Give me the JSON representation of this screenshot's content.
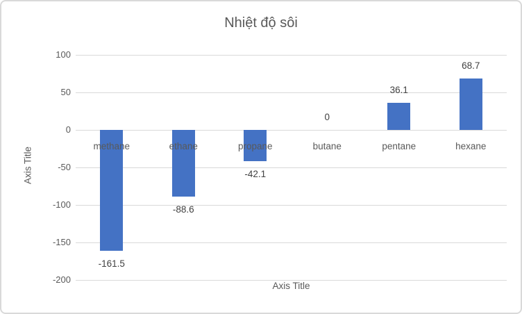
{
  "chart_data": {
    "type": "bar",
    "title": "Nhiệt độ sôi",
    "xlabel": "Axis Title",
    "ylabel": "Axis Title",
    "categories": [
      "methane",
      "ethane",
      "propane",
      "butane",
      "pentane",
      "hexane"
    ],
    "values": [
      -161.5,
      -88.6,
      -42.1,
      0,
      36.1,
      68.7
    ],
    "data_labels": [
      "-161.5",
      "-88.6",
      "-42.1",
      "0",
      "36.1",
      "68.7"
    ],
    "ylim": [
      -200,
      100
    ],
    "yticks": [
      100,
      50,
      0,
      -50,
      -100,
      -150,
      -200
    ],
    "grid": true,
    "legend": "none",
    "colors": {
      "bar": "#4472c4",
      "gridline": "#d9d9d9",
      "title_text": "#595959",
      "axis_text": "#595959",
      "data_label_text": "#404040",
      "border": "#d9d9d9",
      "background": "#ffffff"
    }
  }
}
